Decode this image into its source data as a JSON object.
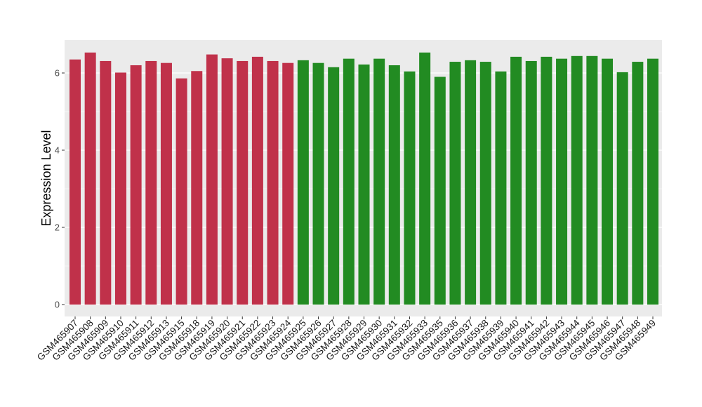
{
  "chart_data": {
    "type": "bar",
    "ylabel": "Expression Level",
    "xlabel": "",
    "title": "",
    "ylim": [
      -0.3,
      6.85
    ],
    "yticks": [
      0,
      2,
      4,
      6
    ],
    "grid": true,
    "legend": "none",
    "colors": {
      "group_a": "#C0314A",
      "group_b": "#228B22",
      "panel": "#EBEBEB",
      "gridline": "#FFFFFF"
    },
    "categories": [
      "GSM465907",
      "GSM465908",
      "GSM465909",
      "GSM465910",
      "GSM465911",
      "GSM465912",
      "GSM465913",
      "GSM465915",
      "GSM465918",
      "GSM465919",
      "GSM465920",
      "GSM465921",
      "GSM465922",
      "GSM465923",
      "GSM465924",
      "GSM465925",
      "GSM465926",
      "GSM465927",
      "GSM465928",
      "GSM465929",
      "GSM465930",
      "GSM465931",
      "GSM465932",
      "GSM465933",
      "GSM465935",
      "GSM465936",
      "GSM465937",
      "GSM465938",
      "GSM465939",
      "GSM465940",
      "GSM465941",
      "GSM465942",
      "GSM465943",
      "GSM465944",
      "GSM465945",
      "GSM465946",
      "GSM465947",
      "GSM465948",
      "GSM465949"
    ],
    "values": [
      6.35,
      6.53,
      6.31,
      6.01,
      6.2,
      6.31,
      6.26,
      5.86,
      6.05,
      6.48,
      6.38,
      6.31,
      6.42,
      6.31,
      6.26,
      6.33,
      6.26,
      6.15,
      6.37,
      6.22,
      6.37,
      6.2,
      6.04,
      6.53,
      5.9,
      6.29,
      6.33,
      6.29,
      6.04,
      6.42,
      6.31,
      6.42,
      6.37,
      6.44,
      6.44,
      6.37,
      6.02,
      6.29,
      6.37
    ],
    "groups": [
      "a",
      "a",
      "a",
      "a",
      "a",
      "a",
      "a",
      "a",
      "a",
      "a",
      "a",
      "a",
      "a",
      "a",
      "a",
      "b",
      "b",
      "b",
      "b",
      "b",
      "b",
      "b",
      "b",
      "b",
      "b",
      "b",
      "b",
      "b",
      "b",
      "b",
      "b",
      "b",
      "b",
      "b",
      "b",
      "b",
      "b",
      "b",
      "b"
    ]
  }
}
